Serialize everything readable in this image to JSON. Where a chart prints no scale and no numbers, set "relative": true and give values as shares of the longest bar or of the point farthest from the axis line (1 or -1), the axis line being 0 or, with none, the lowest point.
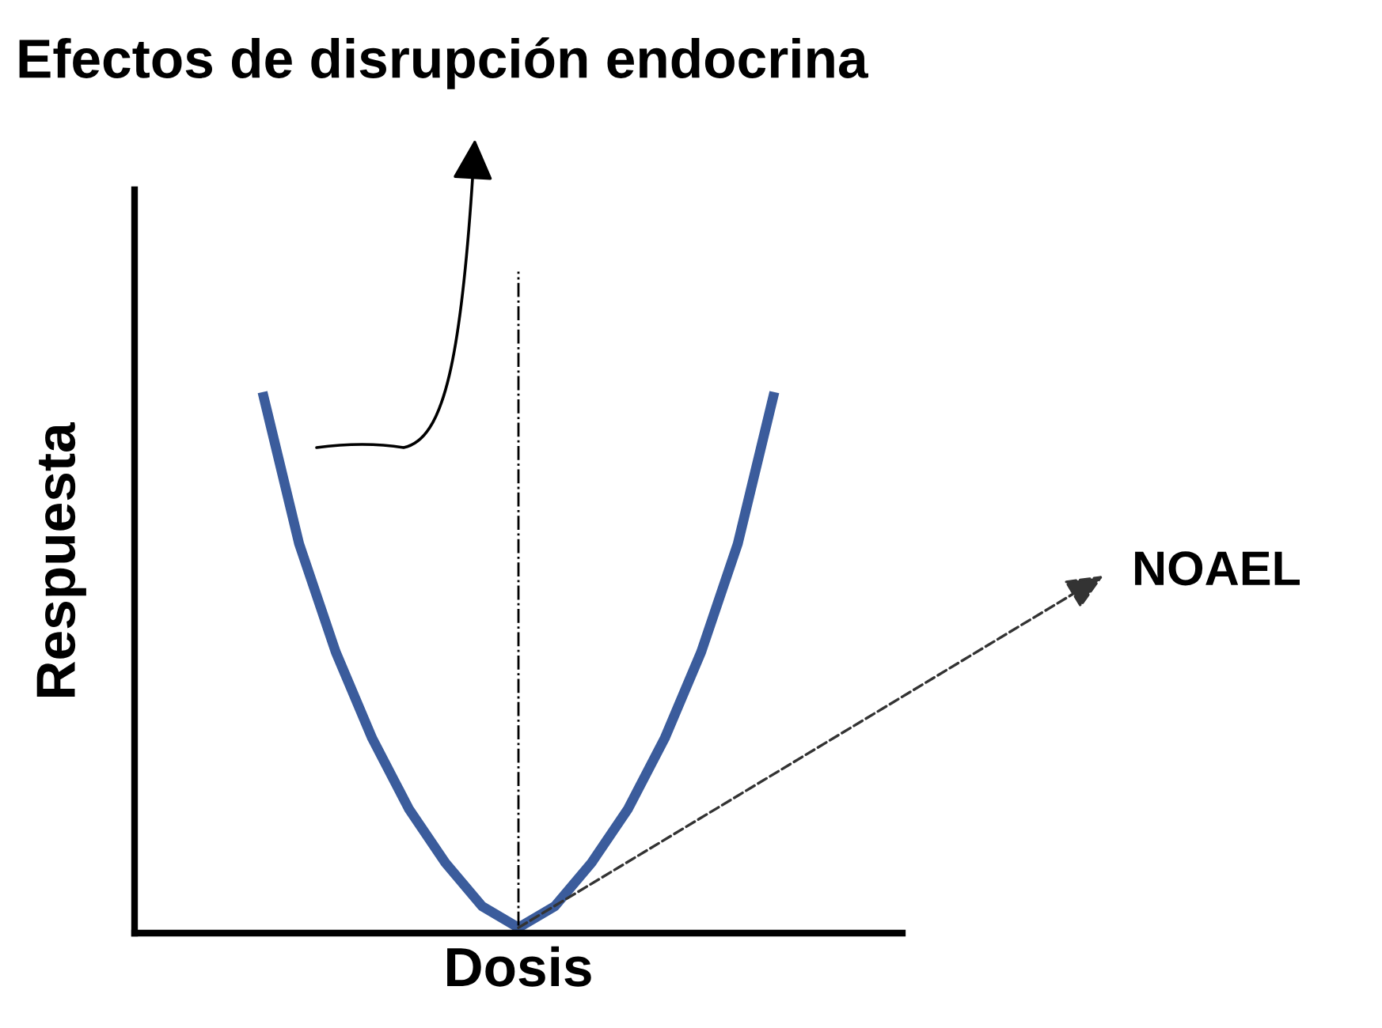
{
  "chart_data": {
    "type": "line",
    "title": "Efectos de disrupción endocrina",
    "xlabel": "Dosis",
    "ylabel": "Respuesta",
    "relative": true,
    "tick_labels": false,
    "marker": "none",
    "line_style": "solid",
    "categories": [
      null,
      null,
      null,
      null,
      null,
      null,
      null,
      null,
      null,
      null,
      null,
      null,
      null,
      null,
      null,
      null,
      null,
      null,
      null,
      null,
      null
    ],
    "series": [
      {
        "color": "#3b5c9c",
        "values": [
          null,
          null,
          null,
          1,
          0.72,
          0.52,
          0.36,
          0.23,
          0.13,
          0.05,
          0.01,
          0.05,
          0.13,
          0.23,
          0.36,
          0.52,
          0.72,
          1,
          null,
          null,
          null
        ]
      }
    ],
    "ref_lines": [
      {
        "axis": "x",
        "color": "#000000",
        "line_style": "dashdot"
      }
    ],
    "annotations": [
      "NOAEL"
    ]
  }
}
